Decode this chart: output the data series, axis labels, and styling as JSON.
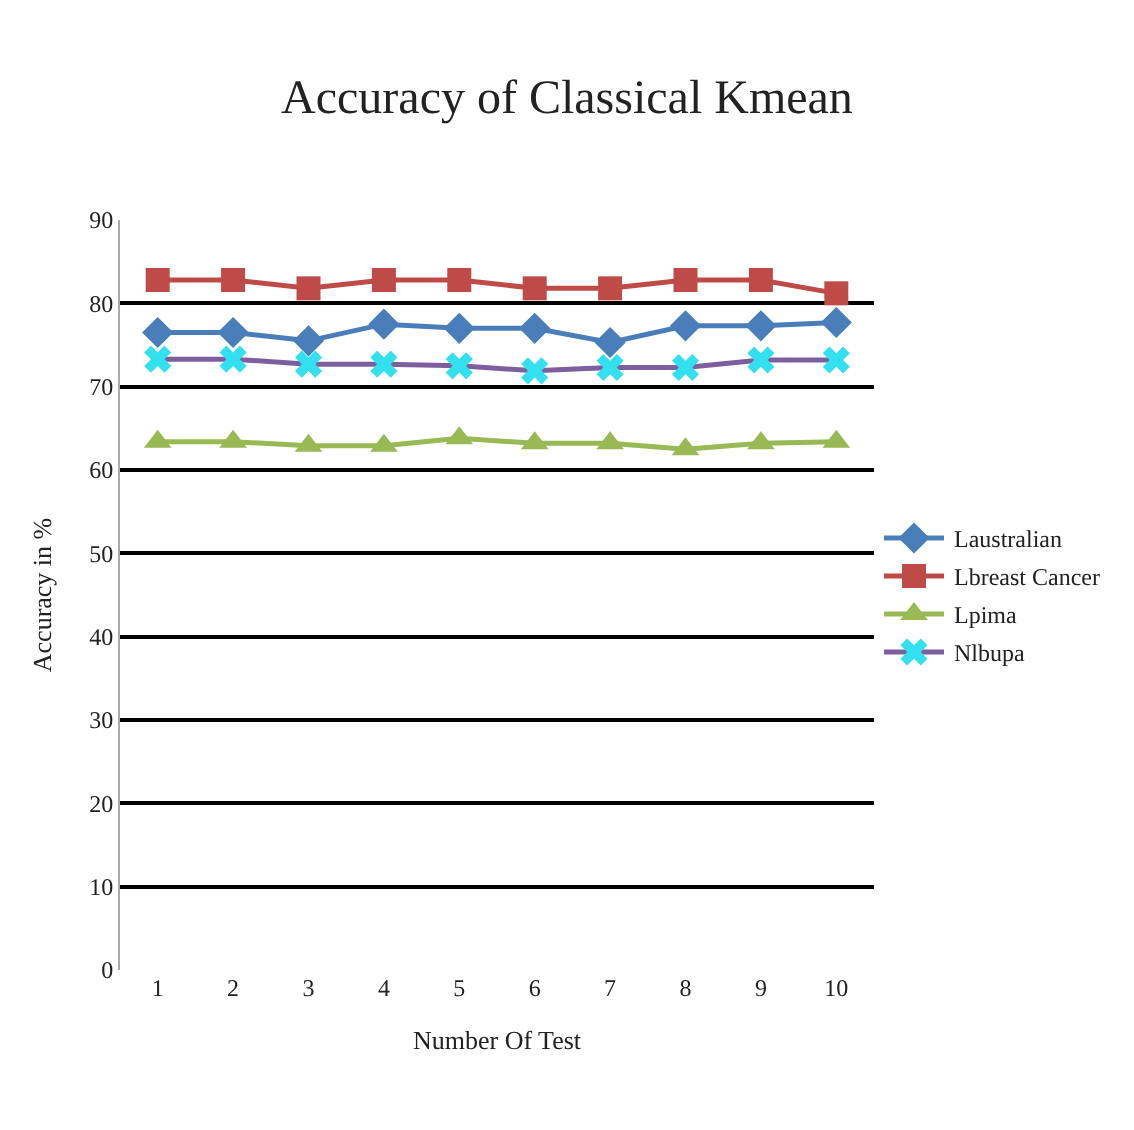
{
  "chart_data": {
    "type": "line",
    "title": "Accuracy of Classical Kmean",
    "xlabel": "Number Of Test",
    "ylabel": "Accuracy in %",
    "categories": [
      "1",
      "2",
      "3",
      "4",
      "5",
      "6",
      "7",
      "8",
      "9",
      "10"
    ],
    "series": [
      {
        "name": "Laustralian",
        "color": "#4a7ebb",
        "marker": "diamond",
        "values": [
          76.5,
          76.5,
          75.5,
          77.5,
          77,
          77,
          75.3,
          77.3,
          77.3,
          77.7
        ]
      },
      {
        "name": "Lbreast Cancer",
        "color": "#be4b48",
        "marker": "square",
        "values": [
          82.8,
          82.8,
          81.8,
          82.8,
          82.8,
          81.8,
          81.8,
          82.8,
          82.8,
          81.2
        ]
      },
      {
        "name": "Lpima",
        "color": "#98b954",
        "marker": "triangle",
        "values": [
          63.4,
          63.4,
          62.9,
          62.9,
          63.8,
          63.2,
          63.2,
          62.5,
          63.2,
          63.4
        ]
      },
      {
        "name": "Nlbupa",
        "color": "#7d5fa0",
        "marker": "cross",
        "colors": [
          "#33e0f0",
          "#33e0f0",
          "#33e0f0",
          "#33e0f0",
          "#33e0f0",
          "#33e0f0",
          "#33e0f0",
          "#33e0f0",
          "#33e0f0",
          "#33e0f0"
        ],
        "values": [
          73.3,
          73.3,
          72.7,
          72.7,
          72.5,
          71.9,
          72.3,
          72.3,
          73.2,
          73.2
        ]
      }
    ],
    "ylim": [
      0,
      90
    ],
    "yticks": [
      0,
      10,
      20,
      30,
      40,
      50,
      60,
      70,
      80,
      90
    ],
    "grid": "y",
    "legend": "right"
  }
}
